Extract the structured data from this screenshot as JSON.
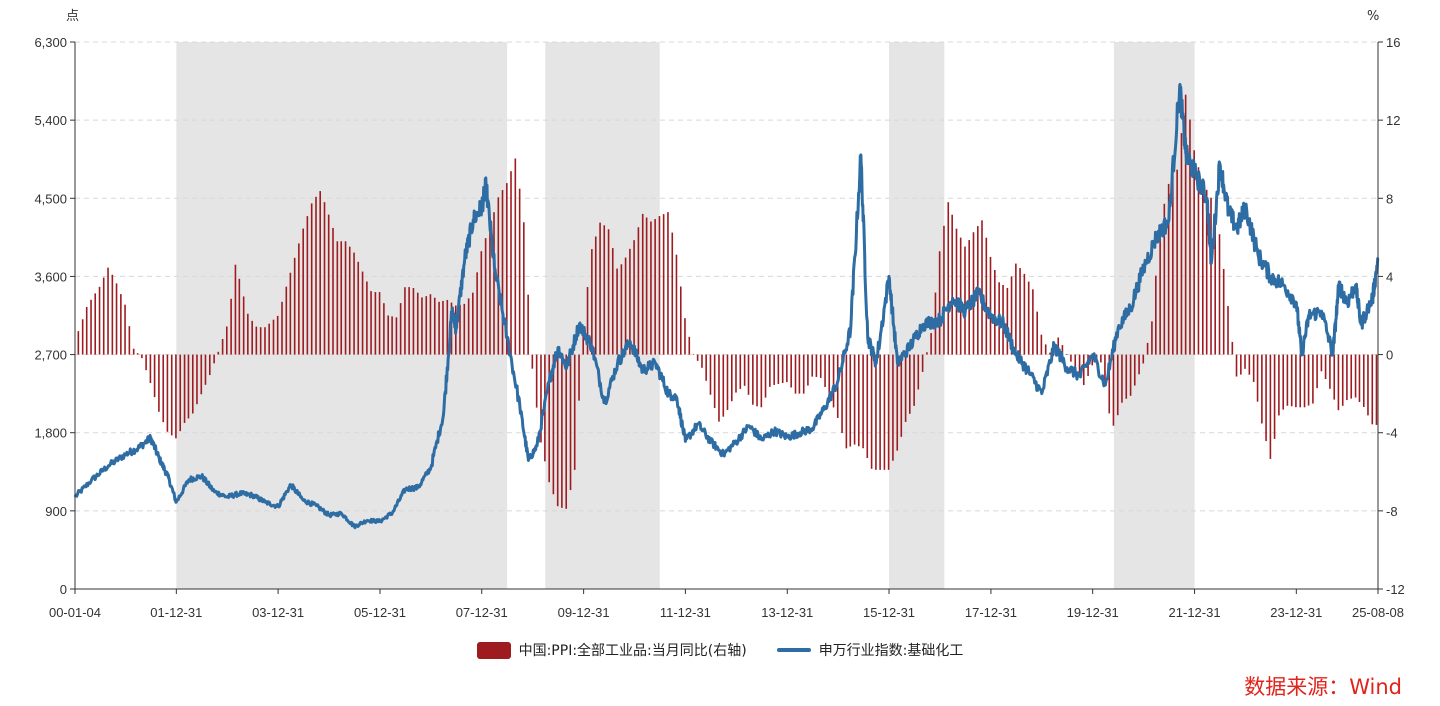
{
  "chart_data": {
    "type": "bar+line",
    "left_axis": {
      "unit": "点",
      "min": 0,
      "max": 6300,
      "ticks": [
        "0",
        "900",
        "1,800",
        "2,700",
        "3,600",
        "4,500",
        "5,400",
        "6,300"
      ]
    },
    "right_axis": {
      "unit": "%",
      "min": -12,
      "max": 16,
      "ticks": [
        "-12",
        "-8",
        "-4",
        "0",
        "4",
        "8",
        "12",
        "16"
      ]
    },
    "x_axis": {
      "start": "2000-01-04",
      "end": "2025-08-08",
      "tick_labels": [
        "00-01-04",
        "01-12-31",
        "03-12-31",
        "05-12-31",
        "07-12-31",
        "09-12-31",
        "11-12-31",
        "13-12-31",
        "15-12-31",
        "17-12-31",
        "19-12-31",
        "21-12-31",
        "23-12-31",
        "25-08-08"
      ],
      "tick_dates": [
        "2000-01-04",
        "2001-12-31",
        "2003-12-31",
        "2005-12-31",
        "2007-12-31",
        "2009-12-31",
        "2011-12-31",
        "2013-12-31",
        "2015-12-31",
        "2017-12-31",
        "2019-12-31",
        "2021-12-31",
        "2023-12-31",
        "2025-08-08"
      ]
    },
    "shaded_periods": [
      [
        "2001-12-31",
        "2008-06-30"
      ],
      [
        "2009-03-31",
        "2011-06-30"
      ],
      [
        "2015-12-31",
        "2017-01-31"
      ],
      [
        "2020-05-31",
        "2021-12-31"
      ]
    ],
    "ppi_series": {
      "name": "中国:PPI:全部工业品:当月同比(右轴)",
      "color": "#9e1b20",
      "points": [
        [
          "2000-01-31",
          1.2
        ],
        [
          "2000-03-31",
          2.5
        ],
        [
          "2000-06-31",
          3.5
        ],
        [
          "2000-08-31",
          4.5
        ],
        [
          "2000-10-31",
          3.6
        ],
        [
          "2000-12-31",
          2.5
        ],
        [
          "2001-02-28",
          0.3
        ],
        [
          "2001-04-30",
          -0.2
        ],
        [
          "2001-06-30",
          -1.5
        ],
        [
          "2001-08-31",
          -3.0
        ],
        [
          "2001-10-31",
          -4.0
        ],
        [
          "2001-12-31",
          -4.3
        ],
        [
          "2002-02-28",
          -3.5
        ],
        [
          "2002-04-30",
          -3.0
        ],
        [
          "2002-06-30",
          -2.0
        ],
        [
          "2002-08-31",
          -1.0
        ],
        [
          "2002-10-31",
          0.2
        ],
        [
          "2002-12-31",
          1.5
        ],
        [
          "2003-01-31",
          3.0
        ],
        [
          "2003-02-28",
          4.6
        ],
        [
          "2003-03-31",
          3.8
        ],
        [
          "2003-05-31",
          2.0
        ],
        [
          "2003-07-31",
          1.4
        ],
        [
          "2003-09-30",
          1.4
        ],
        [
          "2003-12-31",
          2.0
        ],
        [
          "2004-02-29",
          3.5
        ],
        [
          "2004-04-30",
          5.0
        ],
        [
          "2004-06-30",
          6.5
        ],
        [
          "2004-08-31",
          7.8
        ],
        [
          "2004-10-31",
          8.4
        ],
        [
          "2004-12-31",
          7.1
        ],
        [
          "2005-02-28",
          5.8
        ],
        [
          "2005-04-30",
          5.8
        ],
        [
          "2005-06-30",
          5.2
        ],
        [
          "2005-08-31",
          4.2
        ],
        [
          "2005-10-31",
          3.2
        ],
        [
          "2005-12-31",
          3.2
        ],
        [
          "2006-02-28",
          2.0
        ],
        [
          "2006-04-30",
          1.9
        ],
        [
          "2006-06-30",
          3.5
        ],
        [
          "2006-08-31",
          3.4
        ],
        [
          "2006-10-31",
          2.9
        ],
        [
          "2006-12-31",
          3.1
        ],
        [
          "2007-02-28",
          2.7
        ],
        [
          "2007-04-30",
          2.8
        ],
        [
          "2007-06-30",
          2.5
        ],
        [
          "2007-08-31",
          2.6
        ],
        [
          "2007-10-31",
          3.2
        ],
        [
          "2007-12-31",
          5.4
        ],
        [
          "2008-02-29",
          6.6
        ],
        [
          "2008-04-30",
          8.1
        ],
        [
          "2008-06-30",
          8.8
        ],
        [
          "2008-08-31",
          10.1
        ],
        [
          "2008-10-31",
          6.6
        ],
        [
          "2008-12-31",
          -1.1
        ],
        [
          "2009-02-28",
          -4.5
        ],
        [
          "2009-04-30",
          -6.6
        ],
        [
          "2009-06-30",
          -7.8
        ],
        [
          "2009-08-31",
          -7.9
        ],
        [
          "2009-10-31",
          -5.8
        ],
        [
          "2009-12-31",
          1.7
        ],
        [
          "2010-02-28",
          5.4
        ],
        [
          "2010-04-30",
          6.8
        ],
        [
          "2010-06-30",
          6.4
        ],
        [
          "2010-08-31",
          4.3
        ],
        [
          "2010-10-31",
          5.0
        ],
        [
          "2010-12-31",
          5.9
        ],
        [
          "2011-02-28",
          7.2
        ],
        [
          "2011-04-30",
          6.8
        ],
        [
          "2011-06-30",
          7.1
        ],
        [
          "2011-08-31",
          7.3
        ],
        [
          "2011-10-31",
          5.0
        ],
        [
          "2011-12-31",
          1.7
        ],
        [
          "2012-02-29",
          0.0
        ],
        [
          "2012-04-30",
          -0.7
        ],
        [
          "2012-06-30",
          -2.1
        ],
        [
          "2012-08-31",
          -3.5
        ],
        [
          "2012-10-31",
          -2.8
        ],
        [
          "2012-12-31",
          -1.9
        ],
        [
          "2013-02-28",
          -1.6
        ],
        [
          "2013-04-30",
          -2.6
        ],
        [
          "2013-06-30",
          -2.7
        ],
        [
          "2013-08-31",
          -1.6
        ],
        [
          "2013-10-31",
          -1.5
        ],
        [
          "2013-12-31",
          -1.4
        ],
        [
          "2014-02-28",
          -2.0
        ],
        [
          "2014-04-30",
          -2.0
        ],
        [
          "2014-06-30",
          -1.1
        ],
        [
          "2014-08-31",
          -1.2
        ],
        [
          "2014-10-31",
          -2.2
        ],
        [
          "2014-12-31",
          -3.3
        ],
        [
          "2015-02-28",
          -4.8
        ],
        [
          "2015-04-30",
          -4.6
        ],
        [
          "2015-06-30",
          -4.8
        ],
        [
          "2015-08-31",
          -5.9
        ],
        [
          "2015-10-31",
          -5.9
        ],
        [
          "2015-12-31",
          -5.9
        ],
        [
          "2016-02-29",
          -4.9
        ],
        [
          "2016-04-30",
          -3.4
        ],
        [
          "2016-06-30",
          -2.6
        ],
        [
          "2016-08-31",
          -0.8
        ],
        [
          "2016-10-31",
          1.2
        ],
        [
          "2016-12-31",
          5.5
        ],
        [
          "2017-02-28",
          7.8
        ],
        [
          "2017-04-30",
          6.4
        ],
        [
          "2017-06-30",
          5.5
        ],
        [
          "2017-08-31",
          6.3
        ],
        [
          "2017-10-31",
          6.9
        ],
        [
          "2017-12-31",
          4.9
        ],
        [
          "2018-02-28",
          3.7
        ],
        [
          "2018-04-30",
          3.4
        ],
        [
          "2018-06-30",
          4.7
        ],
        [
          "2018-08-31",
          4.1
        ],
        [
          "2018-10-31",
          3.3
        ],
        [
          "2018-12-31",
          0.9
        ],
        [
          "2019-02-28",
          0.1
        ],
        [
          "2019-04-30",
          0.9
        ],
        [
          "2019-06-30",
          0.0
        ],
        [
          "2019-08-31",
          -0.8
        ],
        [
          "2019-10-31",
          -1.6
        ],
        [
          "2019-12-31",
          -0.5
        ],
        [
          "2020-02-29",
          -0.4
        ],
        [
          "2020-04-30",
          -3.1
        ],
        [
          "2020-05-31",
          -3.7
        ],
        [
          "2020-07-31",
          -2.4
        ],
        [
          "2020-09-30",
          -2.1
        ],
        [
          "2020-12-31",
          -0.4
        ],
        [
          "2021-02-28",
          1.7
        ],
        [
          "2021-04-30",
          6.8
        ],
        [
          "2021-06-30",
          8.8
        ],
        [
          "2021-08-31",
          9.5
        ],
        [
          "2021-10-31",
          13.5
        ],
        [
          "2021-12-31",
          10.3
        ],
        [
          "2022-02-28",
          8.8
        ],
        [
          "2022-04-30",
          8.0
        ],
        [
          "2022-06-30",
          6.1
        ],
        [
          "2022-08-31",
          2.3
        ],
        [
          "2022-10-31",
          -1.3
        ],
        [
          "2022-12-31",
          -0.7
        ],
        [
          "2023-02-28",
          -1.4
        ],
        [
          "2023-04-30",
          -3.6
        ],
        [
          "2023-06-30",
          -5.4
        ],
        [
          "2023-08-31",
          -3.0
        ],
        [
          "2023-10-31",
          -2.6
        ],
        [
          "2023-12-31",
          -2.7
        ],
        [
          "2024-02-29",
          -2.7
        ],
        [
          "2024-04-30",
          -2.5
        ],
        [
          "2024-06-30",
          -0.8
        ],
        [
          "2024-08-31",
          -1.8
        ],
        [
          "2024-10-31",
          -2.9
        ],
        [
          "2024-12-31",
          -2.3
        ],
        [
          "2025-02-28",
          -2.2
        ],
        [
          "2025-04-30",
          -2.7
        ],
        [
          "2025-06-30",
          -3.6
        ],
        [
          "2025-07-31",
          -3.6
        ]
      ]
    },
    "index_series": {
      "name": "申万行业指数:基础化工",
      "color": "#2e6da4",
      "points": [
        [
          "2000-01-04",
          1060
        ],
        [
          "2000-04-30",
          1250
        ],
        [
          "2000-08-31",
          1420
        ],
        [
          "2000-12-31",
          1550
        ],
        [
          "2001-03-31",
          1620
        ],
        [
          "2001-06-30",
          1740
        ],
        [
          "2001-08-31",
          1500
        ],
        [
          "2001-10-31",
          1300
        ],
        [
          "2001-12-31",
          1000
        ],
        [
          "2002-03-31",
          1260
        ],
        [
          "2002-06-30",
          1300
        ],
        [
          "2002-09-30",
          1120
        ],
        [
          "2002-12-31",
          1060
        ],
        [
          "2003-03-31",
          1100
        ],
        [
          "2003-06-30",
          1080
        ],
        [
          "2003-09-30",
          1000
        ],
        [
          "2003-12-31",
          950
        ],
        [
          "2004-03-31",
          1200
        ],
        [
          "2004-06-30",
          1020
        ],
        [
          "2004-09-30",
          960
        ],
        [
          "2004-12-31",
          850
        ],
        [
          "2005-03-31",
          870
        ],
        [
          "2005-06-30",
          720
        ],
        [
          "2005-09-30",
          790
        ],
        [
          "2005-12-31",
          780
        ],
        [
          "2006-03-31",
          880
        ],
        [
          "2006-06-30",
          1150
        ],
        [
          "2006-09-30",
          1170
        ],
        [
          "2006-12-31",
          1400
        ],
        [
          "2007-03-31",
          2000
        ],
        [
          "2007-05-31",
          3200
        ],
        [
          "2007-06-30",
          3000
        ],
        [
          "2007-08-31",
          3800
        ],
        [
          "2007-10-31",
          4250
        ],
        [
          "2007-12-31",
          4400
        ],
        [
          "2008-01-31",
          4650
        ],
        [
          "2008-03-31",
          3700
        ],
        [
          "2008-06-30",
          2900
        ],
        [
          "2008-09-30",
          2100
        ],
        [
          "2008-11-30",
          1480
        ],
        [
          "2009-01-31",
          1650
        ],
        [
          "2009-04-30",
          2400
        ],
        [
          "2009-06-30",
          2780
        ],
        [
          "2009-08-31",
          2550
        ],
        [
          "2009-11-30",
          3050
        ],
        [
          "2010-02-28",
          2800
        ],
        [
          "2010-05-31",
          2150
        ],
        [
          "2010-08-31",
          2600
        ],
        [
          "2010-11-30",
          2850
        ],
        [
          "2011-02-28",
          2520
        ],
        [
          "2011-05-31",
          2600
        ],
        [
          "2011-08-31",
          2250
        ],
        [
          "2011-10-31",
          2200
        ],
        [
          "2011-12-31",
          1700
        ],
        [
          "2012-03-31",
          1900
        ],
        [
          "2012-06-30",
          1700
        ],
        [
          "2012-09-30",
          1550
        ],
        [
          "2012-12-31",
          1700
        ],
        [
          "2013-03-31",
          1880
        ],
        [
          "2013-06-30",
          1720
        ],
        [
          "2013-09-30",
          1820
        ],
        [
          "2013-12-31",
          1750
        ],
        [
          "2014-03-31",
          1800
        ],
        [
          "2014-06-30",
          1850
        ],
        [
          "2014-09-30",
          2100
        ],
        [
          "2014-12-31",
          2400
        ],
        [
          "2015-03-31",
          3000
        ],
        [
          "2015-06-12",
          5000
        ],
        [
          "2015-07-31",
          2900
        ],
        [
          "2015-09-30",
          2600
        ],
        [
          "2015-12-31",
          3600
        ],
        [
          "2016-02-29",
          2600
        ],
        [
          "2016-05-31",
          2800
        ],
        [
          "2016-08-31",
          3050
        ],
        [
          "2016-12-31",
          3100
        ],
        [
          "2017-03-31",
          3350
        ],
        [
          "2017-06-30",
          3200
        ],
        [
          "2017-09-30",
          3400
        ],
        [
          "2017-12-31",
          3150
        ],
        [
          "2018-03-31",
          3050
        ],
        [
          "2018-06-30",
          2700
        ],
        [
          "2018-09-30",
          2500
        ],
        [
          "2018-12-31",
          2250
        ],
        [
          "2019-03-31",
          2800
        ],
        [
          "2019-06-30",
          2550
        ],
        [
          "2019-09-30",
          2450
        ],
        [
          "2019-12-31",
          2700
        ],
        [
          "2020-03-31",
          2350
        ],
        [
          "2020-06-30",
          3000
        ],
        [
          "2020-09-30",
          3250
        ],
        [
          "2020-12-31",
          3700
        ],
        [
          "2021-03-31",
          4050
        ],
        [
          "2021-06-30",
          4250
        ],
        [
          "2021-09-15",
          5800
        ],
        [
          "2021-10-31",
          5000
        ],
        [
          "2021-12-31",
          4800
        ],
        [
          "2022-03-31",
          4500
        ],
        [
          "2022-04-30",
          3750
        ],
        [
          "2022-06-30",
          4900
        ],
        [
          "2022-08-31",
          4350
        ],
        [
          "2022-10-31",
          4150
        ],
        [
          "2022-12-31",
          4400
        ],
        [
          "2023-03-31",
          3850
        ],
        [
          "2023-06-30",
          3600
        ],
        [
          "2023-09-30",
          3500
        ],
        [
          "2023-12-31",
          3300
        ],
        [
          "2024-02-07",
          2700
        ],
        [
          "2024-03-31",
          3150
        ],
        [
          "2024-06-30",
          3200
        ],
        [
          "2024-09-18",
          2700
        ],
        [
          "2024-10-31",
          3500
        ],
        [
          "2024-12-31",
          3300
        ],
        [
          "2025-02-28",
          3500
        ],
        [
          "2025-04-08",
          3050
        ],
        [
          "2025-06-30",
          3350
        ],
        [
          "2025-08-08",
          3800
        ]
      ]
    },
    "legend": [
      "中国:PPI:全部工业品:当月同比(右轴)",
      "申万行业指数:基础化工"
    ],
    "legend_placement": "bottom-center",
    "grid": "horizontal dashed"
  },
  "source_note": "数据来源：Wind"
}
